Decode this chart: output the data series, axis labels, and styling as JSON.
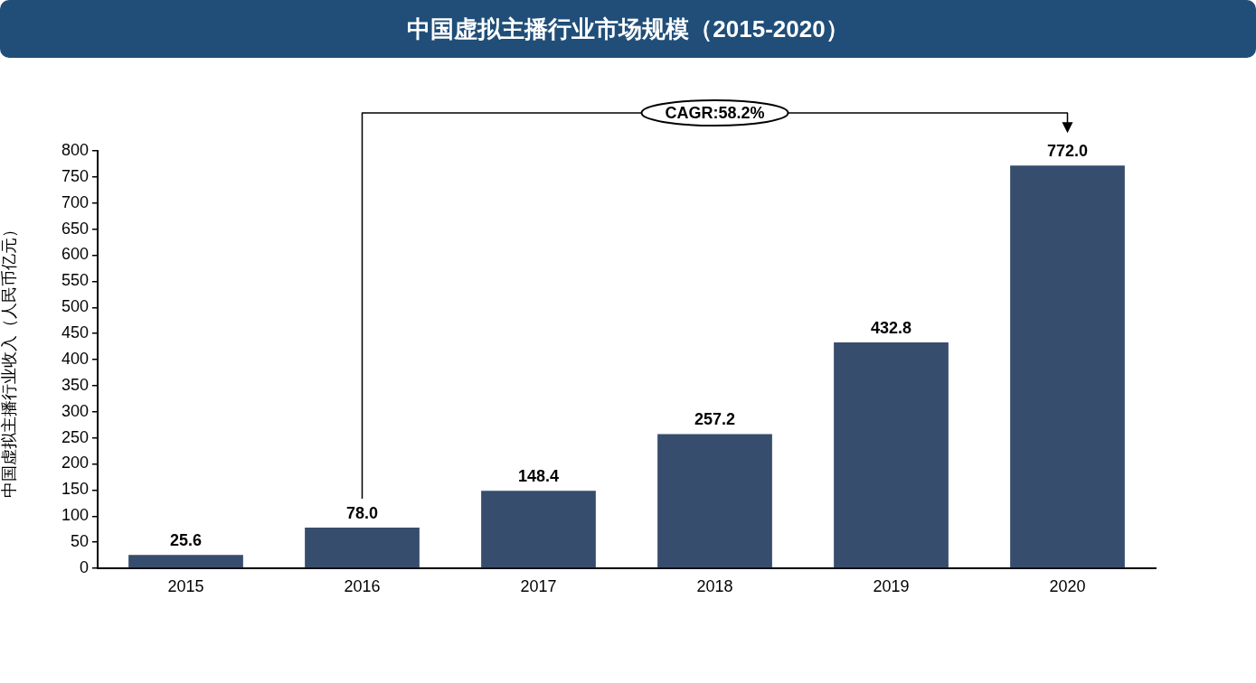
{
  "chart_data": {
    "type": "bar",
    "title": "中国虚拟主播行业市场规模（2015-2020）",
    "ylabel": "中国虚拟主播行业收入（人民币亿元）",
    "categories": [
      "2015",
      "2016",
      "2017",
      "2018",
      "2019",
      "2020"
    ],
    "values": [
      25.6,
      78.0,
      148.4,
      257.2,
      432.8,
      772.0
    ],
    "value_labels": [
      "25.6",
      "78.0",
      "148.4",
      "257.2",
      "432.8",
      "772.0"
    ],
    "color": "#374d6e",
    "ylim": [
      0,
      800
    ],
    "yticks": [
      0,
      50,
      100,
      150,
      200,
      250,
      300,
      350,
      400,
      450,
      500,
      550,
      600,
      650,
      700,
      750,
      800
    ],
    "annotations": [
      "CAGR:58.2%"
    ]
  }
}
